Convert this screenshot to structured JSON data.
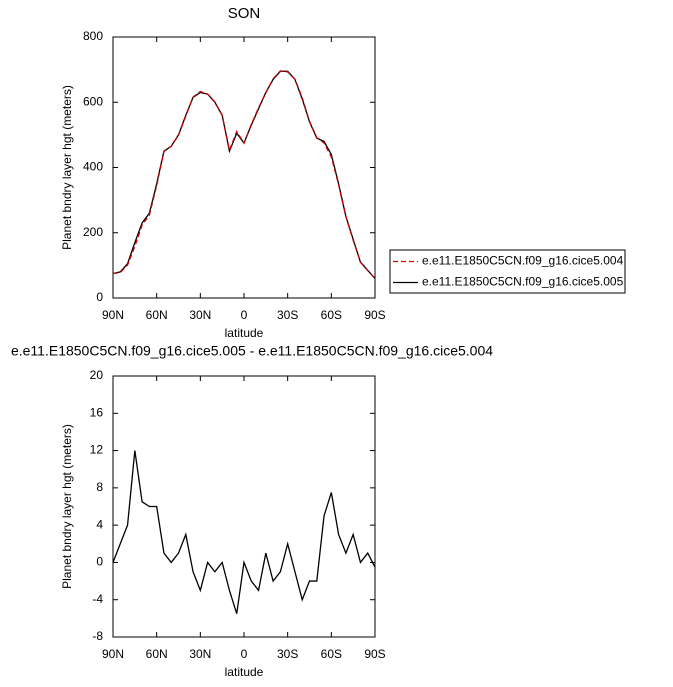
{
  "chart_data": [
    {
      "type": "line",
      "title": "SON",
      "xlabel": "latitude",
      "ylabel": "Planet bndry layer hgt (meters)",
      "x": [
        90,
        85,
        80,
        75,
        70,
        65,
        60,
        55,
        50,
        45,
        40,
        35,
        30,
        25,
        20,
        15,
        10,
        5,
        0,
        -5,
        -10,
        -15,
        -20,
        -25,
        -30,
        -35,
        -40,
        -45,
        -50,
        -55,
        -60,
        -65,
        -70,
        -75,
        -80,
        -85,
        -90
      ],
      "series": [
        {
          "name": "e.e11.E1850C5CN.f09_g16.cice5.004",
          "color": "#cc0000",
          "dash": true,
          "values": [
            75,
            78,
            101,
            158,
            223.5,
            254,
            344,
            449,
            465,
            499,
            557,
            616,
            633,
            625,
            601,
            560,
            453,
            510.5,
            475,
            532,
            583,
            629,
            672,
            696,
            693,
            671,
            614,
            542,
            492,
            475,
            432.5,
            347,
            249,
            177,
            110,
            84,
            60.5
          ]
        },
        {
          "name": "e.e11.E1850C5CN.f09_g16.cice5.005",
          "color": "#000000",
          "dash": false,
          "values": [
            75,
            80,
            105,
            170,
            230,
            260,
            350,
            450,
            465,
            500,
            560,
            615,
            630,
            625,
            600,
            560,
            450,
            505,
            475,
            530,
            580,
            630,
            670,
            695,
            695,
            670,
            610,
            540,
            490,
            480,
            440,
            350,
            250,
            180,
            110,
            85,
            60
          ]
        }
      ],
      "xlim": [
        90,
        -90
      ],
      "xticks": [
        {
          "value": 90,
          "label": "90N"
        },
        {
          "value": 60,
          "label": "60N"
        },
        {
          "value": 30,
          "label": "30N"
        },
        0,
        {
          "value": -30,
          "label": "30S"
        },
        {
          "value": -60,
          "label": "60S"
        },
        {
          "value": -90,
          "label": "90S"
        }
      ],
      "ylim": [
        0,
        800
      ],
      "yticks": [
        0,
        200,
        400,
        600,
        800
      ],
      "legend": "right"
    },
    {
      "type": "line",
      "title": "e.e11.E1850C5CN.f09_g16.cice5.005 - e.e11.E1850C5CN.f09_g16.cice5.004",
      "xlabel": "latitude",
      "ylabel": "Planet bndry layer hgt (meters)",
      "x": [
        90,
        85,
        80,
        75,
        70,
        65,
        60,
        55,
        50,
        45,
        40,
        35,
        30,
        25,
        20,
        15,
        10,
        5,
        0,
        -5,
        -10,
        -15,
        -20,
        -25,
        -30,
        -35,
        -40,
        -45,
        -50,
        -55,
        -60,
        -65,
        -70,
        -75,
        -80,
        -85,
        -90
      ],
      "series": [
        {
          "color": "#000000",
          "dash": false,
          "values": [
            0,
            2,
            4,
            12,
            6.5,
            6,
            6,
            1,
            0,
            1,
            3,
            -1,
            -3,
            0,
            -1,
            0,
            -3,
            -5.5,
            0,
            -2,
            -3,
            1,
            -2,
            -1,
            2,
            -1,
            -4,
            -2,
            -2,
            5,
            7.5,
            3,
            1,
            3,
            0,
            1,
            -0.5
          ]
        }
      ],
      "xlim": [
        90,
        -90
      ],
      "xticks": [
        {
          "value": 90,
          "label": "90N"
        },
        {
          "value": 60,
          "label": "60N"
        },
        {
          "value": 30,
          "label": "30N"
        },
        0,
        {
          "value": -30,
          "label": "30S"
        },
        {
          "value": -60,
          "label": "60S"
        },
        {
          "value": -90,
          "label": "90S"
        }
      ],
      "ylim": [
        -8,
        20
      ],
      "yticks": [
        -8,
        -4,
        0,
        4,
        8,
        12,
        16,
        20
      ]
    }
  ]
}
